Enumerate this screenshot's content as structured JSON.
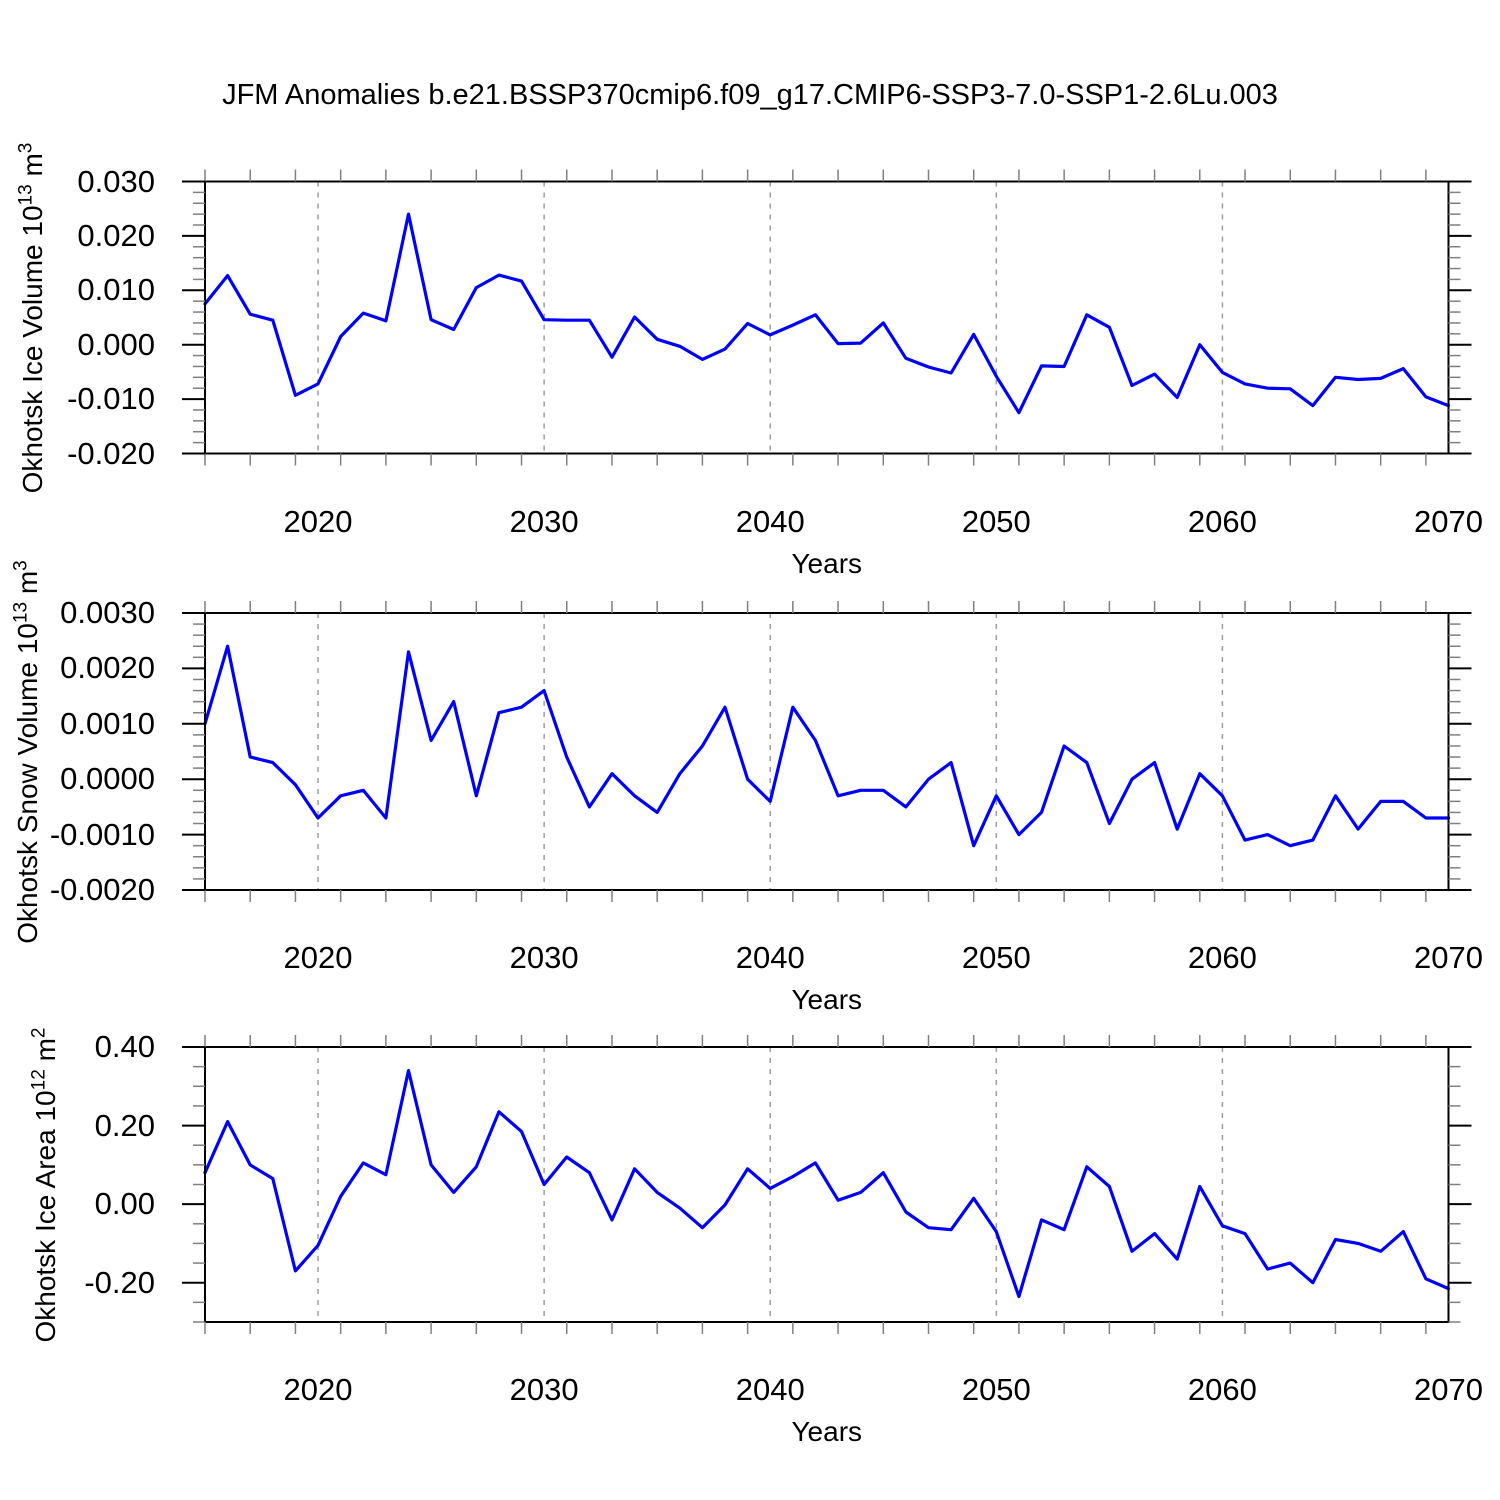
{
  "title": "JFM Anomalies b.e21.BSSP370cmip6.f09_g17.CMIP6-SSP3-7.0-SSP1-2.6Lu.003",
  "colors": {
    "line": "#0000ff",
    "frame": "#000000",
    "major_tick": "#000000",
    "minor_tick": "#808080",
    "grid": "#9e9e9e",
    "background": "#ffffff"
  },
  "x_axis": {
    "label": "Years",
    "xlim": [
      2015,
      2070
    ],
    "major_ticks": [
      2020,
      2030,
      2040,
      2050,
      2060,
      2070
    ],
    "major_tick_labels": [
      "2020",
      "2030",
      "2040",
      "2050",
      "2060",
      "2070"
    ],
    "minor_step_years": 2,
    "grid_years": [
      2020,
      2030,
      2040,
      2050,
      2060
    ],
    "grid_style": "dashed"
  },
  "chart_data": [
    {
      "type": "line",
      "name": "okhotsk-ice-volume",
      "ylabel": "Okhotsk Ice Volume 10^13 m^3",
      "ylabel_parts": [
        {
          "t": "Okhotsk Ice Volume 10"
        },
        {
          "t": "13",
          "sup": true
        },
        {
          "t": " m"
        },
        {
          "t": "3",
          "sup": true
        }
      ],
      "xlabel": "Years",
      "ylim": [
        -0.02,
        0.03
      ],
      "yticks": [
        {
          "v": 0.03,
          "label": "0.030"
        },
        {
          "v": 0.02,
          "label": "0.020"
        },
        {
          "v": 0.01,
          "label": "0.010"
        },
        {
          "v": 0.0,
          "label": "0.000"
        },
        {
          "v": -0.01,
          "label": "-0.010"
        },
        {
          "v": -0.02,
          "label": "-0.020"
        }
      ],
      "yminor_step": 0.002,
      "x": {
        "start": 2015,
        "end": 2070,
        "step": 1
      },
      "values": [
        0.0075,
        0.0127,
        0.0056,
        0.0045,
        -0.0093,
        -0.0072,
        0.0015,
        0.0058,
        0.0044,
        0.024,
        0.0046,
        0.0028,
        0.0105,
        0.0128,
        0.0117,
        0.0046,
        0.0045,
        0.0045,
        -0.0023,
        0.0051,
        0.001,
        -0.0003,
        -0.0027,
        -0.0008,
        0.0039,
        0.0018,
        0.0036,
        0.0055,
        0.0002,
        0.0003,
        0.004,
        -0.0025,
        -0.0041,
        -0.0052,
        0.0019,
        -0.0058,
        -0.0125,
        -0.0039,
        -0.004,
        0.0055,
        0.0032,
        -0.0075,
        -0.0054,
        -0.0097,
        0.0,
        -0.0051,
        -0.0072,
        -0.008,
        -0.0081,
        -0.0112,
        -0.006,
        -0.0064,
        -0.0062,
        -0.0044,
        -0.0096,
        -0.0112
      ]
    },
    {
      "type": "line",
      "name": "okhotsk-snow-volume",
      "ylabel": "Okhotsk Snow Volume 10^13 m^3",
      "ylabel_parts": [
        {
          "t": "Okhotsk Snow Volume 10"
        },
        {
          "t": "13",
          "sup": true
        },
        {
          "t": " m"
        },
        {
          "t": "3",
          "sup": true
        }
      ],
      "xlabel": "Years",
      "ylim": [
        -0.002,
        0.003
      ],
      "yticks": [
        {
          "v": 0.003,
          "label": "0.0030"
        },
        {
          "v": 0.002,
          "label": "0.0020"
        },
        {
          "v": 0.001,
          "label": "0.0010"
        },
        {
          "v": 0.0,
          "label": "0.0000"
        },
        {
          "v": -0.001,
          "label": "-0.0010"
        },
        {
          "v": -0.002,
          "label": "-0.0020"
        }
      ],
      "yminor_step": 0.0002,
      "x": {
        "start": 2015,
        "end": 2070,
        "step": 1
      },
      "values": [
        0.001,
        0.0024,
        0.0004,
        0.0003,
        -0.0001,
        -0.0007,
        -0.0003,
        -0.0002,
        -0.0007,
        0.0023,
        0.0007,
        0.0014,
        -0.0003,
        0.0012,
        0.0013,
        0.0016,
        0.0004,
        -0.0005,
        0.0001,
        -0.0003,
        -0.0006,
        0.0001,
        0.0006,
        0.0013,
        0.0,
        -0.0004,
        0.0013,
        0.0007,
        -0.0003,
        -0.0002,
        -0.0002,
        -0.0005,
        0.0,
        0.0003,
        -0.0012,
        -0.0003,
        -0.001,
        -0.0006,
        0.0006,
        0.0003,
        -0.0008,
        0.0,
        0.0003,
        -0.0009,
        0.0001,
        -0.0003,
        -0.0011,
        -0.001,
        -0.0012,
        -0.0011,
        -0.0003,
        -0.0009,
        -0.0004,
        -0.0004,
        -0.0007,
        -0.0007
      ]
    },
    {
      "type": "line",
      "name": "okhotsk-ice-area",
      "ylabel": "Okhotsk Ice Area 10^12 m^2",
      "ylabel_parts": [
        {
          "t": "Okhotsk Ice Area 10"
        },
        {
          "t": "12",
          "sup": true
        },
        {
          "t": " m"
        },
        {
          "t": "2",
          "sup": true
        }
      ],
      "xlabel": "Years",
      "ylim": [
        -0.3,
        0.4
      ],
      "yticks": [
        {
          "v": 0.4,
          "label": "0.40"
        },
        {
          "v": 0.2,
          "label": "0.20"
        },
        {
          "v": 0.0,
          "label": "0.00"
        },
        {
          "v": -0.2,
          "label": "-0.20"
        }
      ],
      "yminor_step": 0.05,
      "x": {
        "start": 2015,
        "end": 2070,
        "step": 1
      },
      "values": [
        0.08,
        0.21,
        0.1,
        0.065,
        -0.17,
        -0.105,
        0.02,
        0.105,
        0.075,
        0.34,
        0.1,
        0.03,
        0.095,
        0.235,
        0.185,
        0.05,
        0.12,
        0.08,
        -0.04,
        0.09,
        0.03,
        -0.01,
        -0.06,
        -0.002,
        0.09,
        0.04,
        0.07,
        0.105,
        0.01,
        0.03,
        0.08,
        -0.02,
        -0.06,
        -0.065,
        0.015,
        -0.07,
        -0.235,
        -0.04,
        -0.065,
        0.095,
        0.045,
        -0.12,
        -0.075,
        -0.14,
        0.045,
        -0.055,
        -0.075,
        -0.165,
        -0.15,
        -0.2,
        -0.09,
        -0.1,
        -0.12,
        -0.07,
        -0.19,
        -0.215
      ]
    }
  ]
}
